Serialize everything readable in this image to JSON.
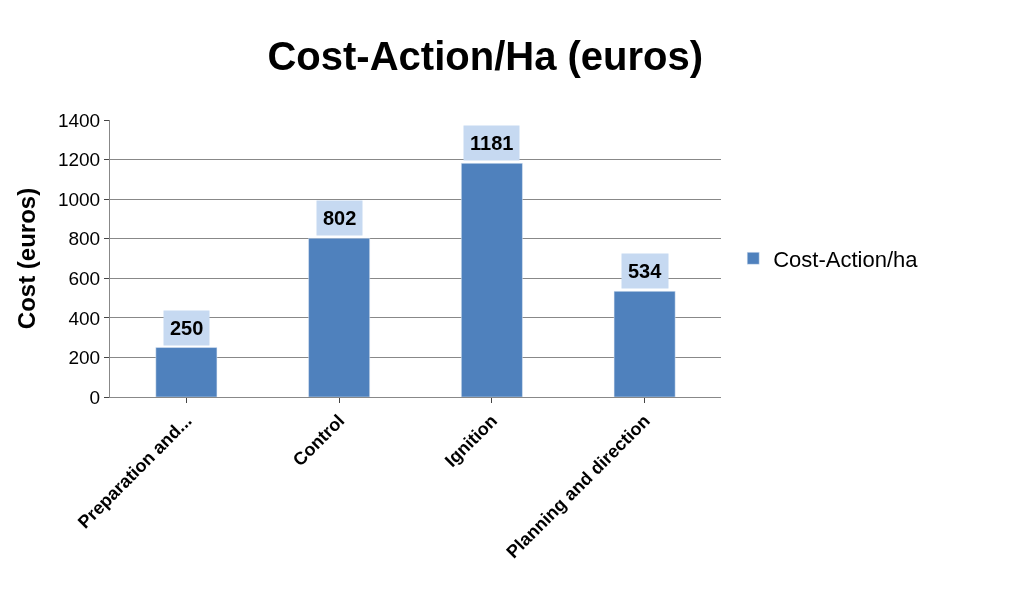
{
  "chart_data": {
    "type": "bar",
    "title": "Cost-Action/Ha (euros)",
    "ylabel": "Cost (euros)",
    "categories": [
      "Preparation and...",
      "Control",
      "Ignition",
      "Planning and direction"
    ],
    "series": [
      {
        "name": "Cost-Action/ha",
        "color": "#4f81bd",
        "values": [
          250,
          802,
          1181,
          534
        ]
      }
    ],
    "ylim": [
      0,
      1400
    ],
    "yticks": [
      0,
      200,
      400,
      600,
      800,
      1000,
      1200,
      1400
    ],
    "grid": "y",
    "legend": "right",
    "data_labels": true
  }
}
